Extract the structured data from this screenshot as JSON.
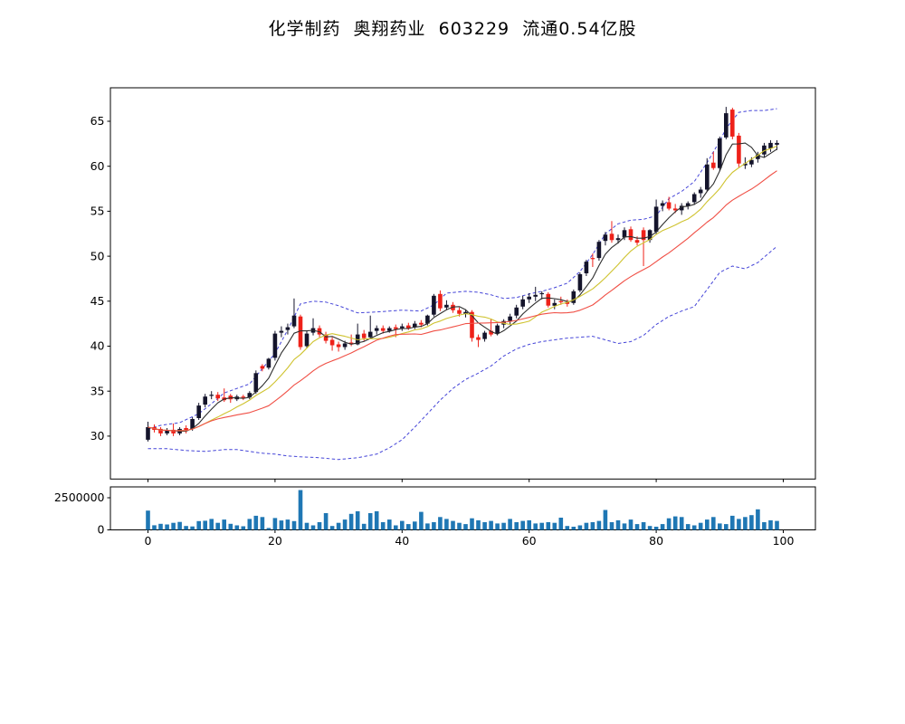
{
  "title": {
    "text": "化学制药  奥翔药业  603229  流通0.54亿股"
  },
  "chart_data": [
    {
      "type": "candlestick",
      "title": "化学制药  奥翔药业  603229  流通0.54亿股",
      "xlabel": "",
      "ylabel": "",
      "x_ticks": [
        0,
        20,
        40,
        60,
        80,
        100
      ],
      "y_ticks": [
        30,
        35,
        40,
        45,
        50,
        55,
        60,
        65
      ],
      "xlim": [
        -5.9,
        105.1
      ],
      "ylim": [
        25.2,
        68.7
      ],
      "grid": false,
      "legend": "none",
      "colors": {
        "up": "#14142b",
        "down": "#ee2119",
        "ma5": "#2e2e2e",
        "ma10": "#cfc32f",
        "ma20": "#f04f45",
        "band": "#4545d8"
      },
      "ohlc_format": [
        "open",
        "high",
        "low",
        "close"
      ],
      "candles": [
        [
          29.6,
          31.6,
          29.4,
          31.0
        ],
        [
          31.0,
          31.3,
          30.4,
          30.7
        ],
        [
          30.8,
          31.0,
          30.0,
          30.3
        ],
        [
          30.3,
          30.9,
          30.1,
          30.6
        ],
        [
          30.7,
          31.4,
          30.0,
          30.3
        ],
        [
          30.3,
          31.0,
          30.1,
          30.8
        ],
        [
          30.9,
          31.2,
          30.3,
          30.7
        ],
        [
          30.8,
          32.1,
          30.6,
          31.9
        ],
        [
          32.0,
          33.7,
          31.8,
          33.4
        ],
        [
          33.5,
          34.7,
          33.2,
          34.4
        ],
        [
          34.5,
          35.0,
          34.1,
          34.6
        ],
        [
          34.6,
          34.9,
          33.9,
          34.2
        ],
        [
          34.3,
          35.3,
          33.8,
          34.0
        ],
        [
          34.5,
          34.7,
          33.7,
          34.1
        ],
        [
          34.1,
          34.6,
          33.9,
          34.4
        ],
        [
          34.4,
          34.6,
          34.0,
          34.3
        ],
        [
          34.3,
          35.0,
          34.1,
          34.8
        ],
        [
          34.9,
          37.3,
          34.7,
          37.0
        ],
        [
          37.8,
          38.0,
          37.2,
          37.5
        ],
        [
          37.6,
          38.7,
          37.4,
          38.6
        ],
        [
          38.7,
          41.7,
          38.4,
          41.4
        ],
        [
          41.5,
          42.2,
          41.0,
          41.7
        ],
        [
          41.8,
          42.5,
          41.3,
          42.1
        ],
        [
          42.2,
          45.3,
          42.0,
          43.4
        ],
        [
          43.3,
          43.5,
          39.6,
          39.9
        ],
        [
          40.0,
          41.7,
          39.8,
          41.4
        ],
        [
          41.5,
          43.1,
          41.2,
          42.0
        ],
        [
          42.0,
          42.3,
          41.0,
          41.3
        ],
        [
          41.3,
          41.6,
          40.3,
          40.6
        ],
        [
          40.7,
          41.0,
          39.5,
          40.1
        ],
        [
          40.2,
          40.5,
          39.4,
          39.9
        ],
        [
          39.9,
          40.6,
          39.6,
          40.3
        ],
        [
          40.4,
          41.3,
          40.0,
          40.2
        ],
        [
          40.2,
          42.5,
          40.1,
          41.3
        ],
        [
          41.4,
          41.8,
          40.6,
          40.9
        ],
        [
          41.0,
          43.4,
          40.8,
          41.6
        ],
        [
          41.7,
          42.3,
          41.3,
          42.0
        ],
        [
          42.0,
          42.3,
          41.4,
          41.7
        ],
        [
          41.7,
          42.2,
          41.5,
          42.0
        ],
        [
          42.1,
          42.4,
          41.0,
          41.9
        ],
        [
          42.0,
          42.5,
          41.7,
          42.2
        ],
        [
          42.3,
          42.6,
          41.8,
          42.0
        ],
        [
          42.1,
          42.8,
          41.9,
          42.5
        ],
        [
          42.6,
          42.9,
          42.1,
          42.4
        ],
        [
          42.5,
          43.5,
          42.3,
          43.4
        ],
        [
          43.5,
          45.8,
          43.3,
          45.6
        ],
        [
          45.8,
          46.2,
          43.9,
          44.2
        ],
        [
          44.3,
          45.1,
          44.0,
          44.6
        ],
        [
          44.6,
          44.9,
          43.7,
          44.0
        ],
        [
          44.0,
          44.3,
          43.3,
          43.6
        ],
        [
          43.6,
          44.1,
          43.2,
          43.8
        ],
        [
          43.8,
          44.0,
          40.5,
          40.9
        ],
        [
          41.0,
          41.3,
          39.9,
          40.7
        ],
        [
          40.8,
          41.7,
          40.5,
          41.5
        ],
        [
          41.7,
          43.0,
          41.1,
          41.3
        ],
        [
          41.4,
          42.5,
          41.2,
          42.3
        ],
        [
          42.4,
          43.0,
          42.0,
          42.8
        ],
        [
          42.8,
          43.6,
          42.4,
          43.3
        ],
        [
          43.4,
          44.6,
          43.1,
          44.3
        ],
        [
          44.4,
          45.6,
          44.1,
          45.2
        ],
        [
          45.2,
          45.9,
          44.8,
          45.5
        ],
        [
          45.5,
          46.6,
          45.0,
          45.7
        ],
        [
          45.8,
          46.1,
          45.2,
          45.9
        ],
        [
          45.8,
          46.0,
          44.3,
          44.5
        ],
        [
          44.5,
          45.2,
          44.1,
          44.8
        ],
        [
          45.0,
          45.5,
          44.6,
          44.9
        ],
        [
          44.9,
          45.2,
          44.4,
          44.7
        ],
        [
          44.8,
          46.3,
          44.6,
          46.1
        ],
        [
          46.2,
          48.2,
          46.0,
          48.0
        ],
        [
          48.1,
          49.6,
          47.8,
          49.4
        ],
        [
          49.8,
          50.3,
          48.8,
          49.7
        ],
        [
          49.8,
          51.8,
          49.5,
          51.6
        ],
        [
          51.7,
          52.7,
          51.2,
          52.4
        ],
        [
          52.5,
          53.9,
          51.5,
          51.8
        ],
        [
          51.8,
          52.4,
          51.4,
          52.0
        ],
        [
          52.1,
          53.2,
          51.8,
          52.9
        ],
        [
          53.0,
          53.3,
          51.6,
          51.8
        ],
        [
          51.8,
          52.2,
          51.2,
          51.5
        ],
        [
          52.9,
          53.2,
          48.9,
          51.8
        ],
        [
          51.8,
          53.0,
          51.5,
          52.9
        ],
        [
          52.7,
          56.3,
          52.4,
          55.5
        ],
        [
          55.6,
          56.2,
          55.0,
          55.9
        ],
        [
          56.0,
          56.6,
          55.1,
          55.3
        ],
        [
          55.3,
          55.8,
          54.8,
          55.1
        ],
        [
          55.1,
          55.9,
          54.6,
          55.6
        ],
        [
          55.6,
          56.1,
          55.2,
          55.9
        ],
        [
          56.0,
          57.1,
          55.7,
          56.9
        ],
        [
          57.0,
          57.7,
          56.5,
          57.4
        ],
        [
          57.4,
          60.9,
          57.2,
          60.2
        ],
        [
          60.4,
          61.6,
          59.6,
          59.8
        ],
        [
          59.8,
          63.3,
          59.5,
          63.1
        ],
        [
          63.2,
          66.6,
          63.0,
          65.9
        ],
        [
          66.3,
          66.5,
          63.0,
          63.3
        ],
        [
          63.4,
          63.7,
          59.9,
          60.3
        ],
        [
          60.1,
          61.0,
          59.7,
          60.3
        ],
        [
          60.2,
          61.0,
          59.9,
          60.7
        ],
        [
          60.8,
          61.6,
          60.4,
          61.3
        ],
        [
          61.3,
          62.6,
          61.0,
          62.3
        ],
        [
          62.0,
          62.9,
          61.6,
          62.6
        ],
        [
          62.4,
          62.9,
          61.8,
          62.6
        ]
      ],
      "overlays": {
        "ma_windows": [
          5,
          10,
          20
        ],
        "upper_band_points": [
          [
            0,
            30.8
          ],
          [
            2,
            31.2
          ],
          [
            5,
            31.5
          ],
          [
            8,
            32.5
          ],
          [
            10,
            33.6
          ],
          [
            12,
            34.8
          ],
          [
            14,
            35.3
          ],
          [
            16,
            35.8
          ],
          [
            18,
            37.5
          ],
          [
            20,
            39.2
          ],
          [
            22,
            41.8
          ],
          [
            24,
            44.7
          ],
          [
            26,
            45.0
          ],
          [
            28,
            44.9
          ],
          [
            30,
            44.5
          ],
          [
            33,
            43.7
          ],
          [
            36,
            43.8
          ],
          [
            40,
            44.0
          ],
          [
            43,
            43.9
          ],
          [
            45,
            44.6
          ],
          [
            47,
            45.9
          ],
          [
            50,
            46.1
          ],
          [
            52,
            46.0
          ],
          [
            54,
            45.7
          ],
          [
            56,
            45.3
          ],
          [
            58,
            45.4
          ],
          [
            60,
            45.8
          ],
          [
            62,
            46.1
          ],
          [
            64,
            46.5
          ],
          [
            66,
            47.0
          ],
          [
            68,
            48.3
          ],
          [
            70,
            50.2
          ],
          [
            72,
            52.5
          ],
          [
            74,
            53.6
          ],
          [
            76,
            54.0
          ],
          [
            78,
            54.1
          ],
          [
            80,
            54.5
          ],
          [
            82,
            56.4
          ],
          [
            84,
            57.2
          ],
          [
            86,
            58.3
          ],
          [
            88,
            60.4
          ],
          [
            90,
            62.8
          ],
          [
            91,
            64.2
          ],
          [
            93,
            66.0
          ],
          [
            95,
            66.2
          ],
          [
            97,
            66.2
          ],
          [
            99,
            66.4
          ]
        ],
        "lower_band_points": [
          [
            0,
            28.6
          ],
          [
            3,
            28.6
          ],
          [
            6,
            28.4
          ],
          [
            9,
            28.3
          ],
          [
            12,
            28.5
          ],
          [
            14,
            28.5
          ],
          [
            16,
            28.3
          ],
          [
            18,
            28.1
          ],
          [
            20,
            28.0
          ],
          [
            22,
            27.8
          ],
          [
            24,
            27.7
          ],
          [
            27,
            27.6
          ],
          [
            30,
            27.4
          ],
          [
            33,
            27.6
          ],
          [
            36,
            28.0
          ],
          [
            38,
            28.7
          ],
          [
            40,
            29.6
          ],
          [
            42,
            31.0
          ],
          [
            44,
            32.5
          ],
          [
            46,
            34.0
          ],
          [
            48,
            35.3
          ],
          [
            50,
            36.3
          ],
          [
            52,
            37.0
          ],
          [
            54,
            37.8
          ],
          [
            56,
            38.9
          ],
          [
            58,
            39.7
          ],
          [
            60,
            40.2
          ],
          [
            62,
            40.5
          ],
          [
            64,
            40.7
          ],
          [
            66,
            40.9
          ],
          [
            68,
            41.0
          ],
          [
            70,
            41.1
          ],
          [
            72,
            40.7
          ],
          [
            74,
            40.3
          ],
          [
            76,
            40.5
          ],
          [
            78,
            41.2
          ],
          [
            80,
            42.4
          ],
          [
            82,
            43.3
          ],
          [
            84,
            43.9
          ],
          [
            86,
            44.4
          ],
          [
            88,
            46.3
          ],
          [
            90,
            48.2
          ],
          [
            92,
            48.9
          ],
          [
            94,
            48.6
          ],
          [
            96,
            49.3
          ],
          [
            98,
            50.5
          ],
          [
            99,
            51.1
          ]
        ]
      }
    },
    {
      "type": "bar",
      "name": "volume",
      "bar_color": "#1f77b4",
      "x_ticks": [
        0,
        20,
        40,
        60,
        80,
        100
      ],
      "y_ticks": [
        0,
        2500000
      ],
      "y_tick_labels": [
        "0",
        "2500000"
      ],
      "xlim": [
        -5.9,
        105.1
      ],
      "ylim": [
        0,
        3350000
      ],
      "values": [
        1500000,
        360000,
        470000,
        420000,
        550000,
        620000,
        300000,
        270000,
        680000,
        710000,
        850000,
        550000,
        800000,
        470000,
        350000,
        280000,
        850000,
        1100000,
        1000000,
        150000,
        920000,
        730000,
        800000,
        680000,
        3100000,
        550000,
        350000,
        600000,
        1300000,
        300000,
        550000,
        800000,
        1250000,
        1450000,
        470000,
        1300000,
        1450000,
        600000,
        800000,
        350000,
        700000,
        450000,
        650000,
        1400000,
        500000,
        600000,
        1000000,
        850000,
        700000,
        550000,
        450000,
        900000,
        750000,
        600000,
        700000,
        500000,
        550000,
        850000,
        600000,
        700000,
        750000,
        500000,
        550000,
        600000,
        550000,
        950000,
        300000,
        250000,
        350000,
        550000,
        600000,
        700000,
        1550000,
        600000,
        750000,
        500000,
        800000,
        450000,
        600000,
        300000,
        250000,
        450000,
        900000,
        1050000,
        1000000,
        450000,
        350000,
        550000,
        800000,
        1000000,
        500000,
        450000,
        1100000,
        850000,
        1000000,
        1150000,
        1600000,
        600000,
        750000,
        700000
      ]
    }
  ]
}
